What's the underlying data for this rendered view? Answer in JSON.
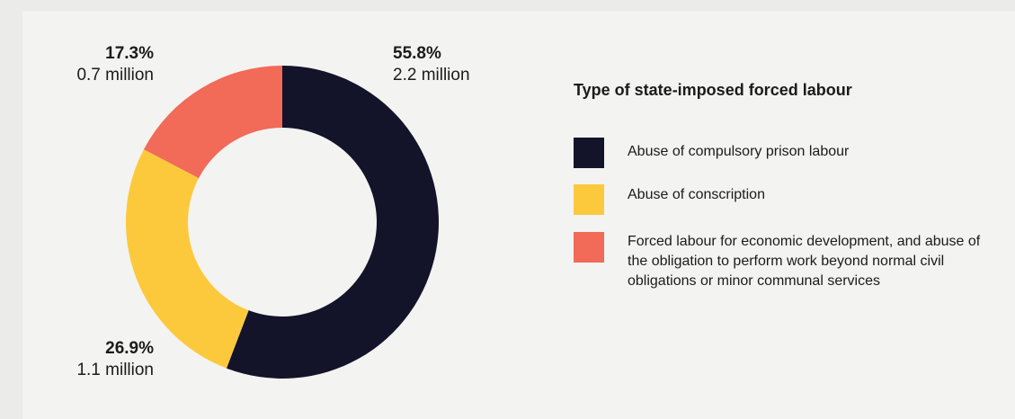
{
  "chart_data": {
    "type": "pie",
    "donut": true,
    "title": "",
    "legend_title": "Type of state-imposed forced labour",
    "legend_placement": "right",
    "series": [
      {
        "name": "Abuse of compulsory prison labour",
        "percent": 55.8,
        "percent_label": "55.8%",
        "value_label": "2.2 million",
        "color": "#13132a"
      },
      {
        "name": "Abuse of conscription",
        "percent": 26.9,
        "percent_label": "26.9%",
        "value_label": "1.1 million",
        "color": "#fdc93c"
      },
      {
        "name": "Forced labour for economic development, and abuse of the obligation to perform work beyond normal civil obligations or minor communal services",
        "percent": 17.3,
        "percent_label": "17.3%",
        "value_label": "0.7 million",
        "color": "#f26a58"
      }
    ]
  }
}
